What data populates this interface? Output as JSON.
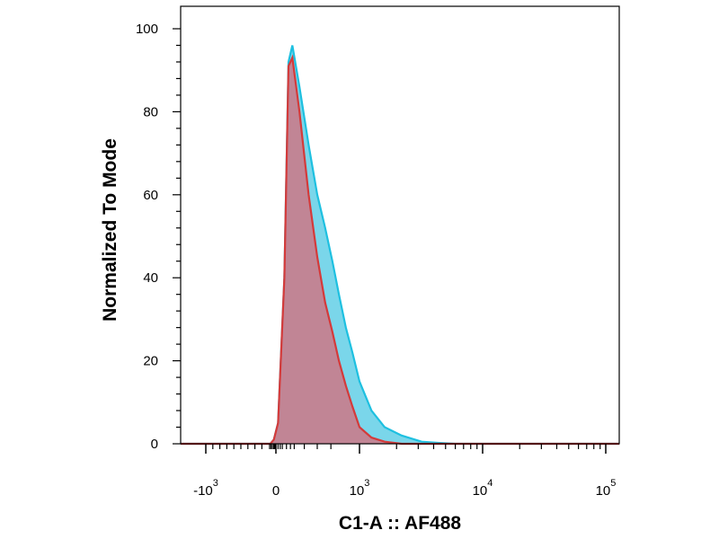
{
  "chart_data": {
    "type": "area",
    "xlabel": "C1-A :: AF488",
    "ylabel": "Normalized To Mode",
    "y_ticks": [
      "0",
      "20",
      "40",
      "60",
      "80",
      "100"
    ],
    "x_ticks": [
      {
        "base": "-10",
        "exp": "3"
      },
      {
        "base": "0",
        "exp": ""
      },
      {
        "base": "10",
        "exp": "3"
      },
      {
        "base": "10",
        "exp": "4"
      },
      {
        "base": "10",
        "exp": "5"
      }
    ],
    "x_scale": "biexponential",
    "ylim": [
      0,
      100
    ],
    "legend": "none",
    "grid": false,
    "series": [
      {
        "color": "#1ec0e0",
        "fill": "#7ad6ea",
        "points": [
          [
            -80,
            0
          ],
          [
            -30,
            1
          ],
          [
            10,
            5
          ],
          [
            40,
            40
          ],
          [
            60,
            92
          ],
          [
            80,
            96
          ],
          [
            120,
            86
          ],
          [
            180,
            72
          ],
          [
            250,
            60
          ],
          [
            330,
            52
          ],
          [
            420,
            44
          ],
          [
            520,
            36
          ],
          [
            650,
            28
          ],
          [
            800,
            22
          ],
          [
            1000,
            15
          ],
          [
            1250,
            8
          ],
          [
            1600,
            4
          ],
          [
            2200,
            2
          ],
          [
            3200,
            0.5
          ],
          [
            4500,
            0.2
          ],
          [
            6000,
            0
          ]
        ]
      },
      {
        "color": "#d43a3a",
        "fill": "#c97c8c",
        "points": [
          [
            -80,
            0
          ],
          [
            -30,
            1
          ],
          [
            10,
            5
          ],
          [
            40,
            40
          ],
          [
            60,
            91
          ],
          [
            80,
            93
          ],
          [
            120,
            80
          ],
          [
            180,
            60
          ],
          [
            250,
            45
          ],
          [
            330,
            34
          ],
          [
            420,
            27
          ],
          [
            520,
            20
          ],
          [
            650,
            14
          ],
          [
            800,
            9
          ],
          [
            1000,
            4
          ],
          [
            1250,
            1.5
          ],
          [
            1600,
            0.5
          ],
          [
            2200,
            0
          ]
        ]
      }
    ]
  }
}
